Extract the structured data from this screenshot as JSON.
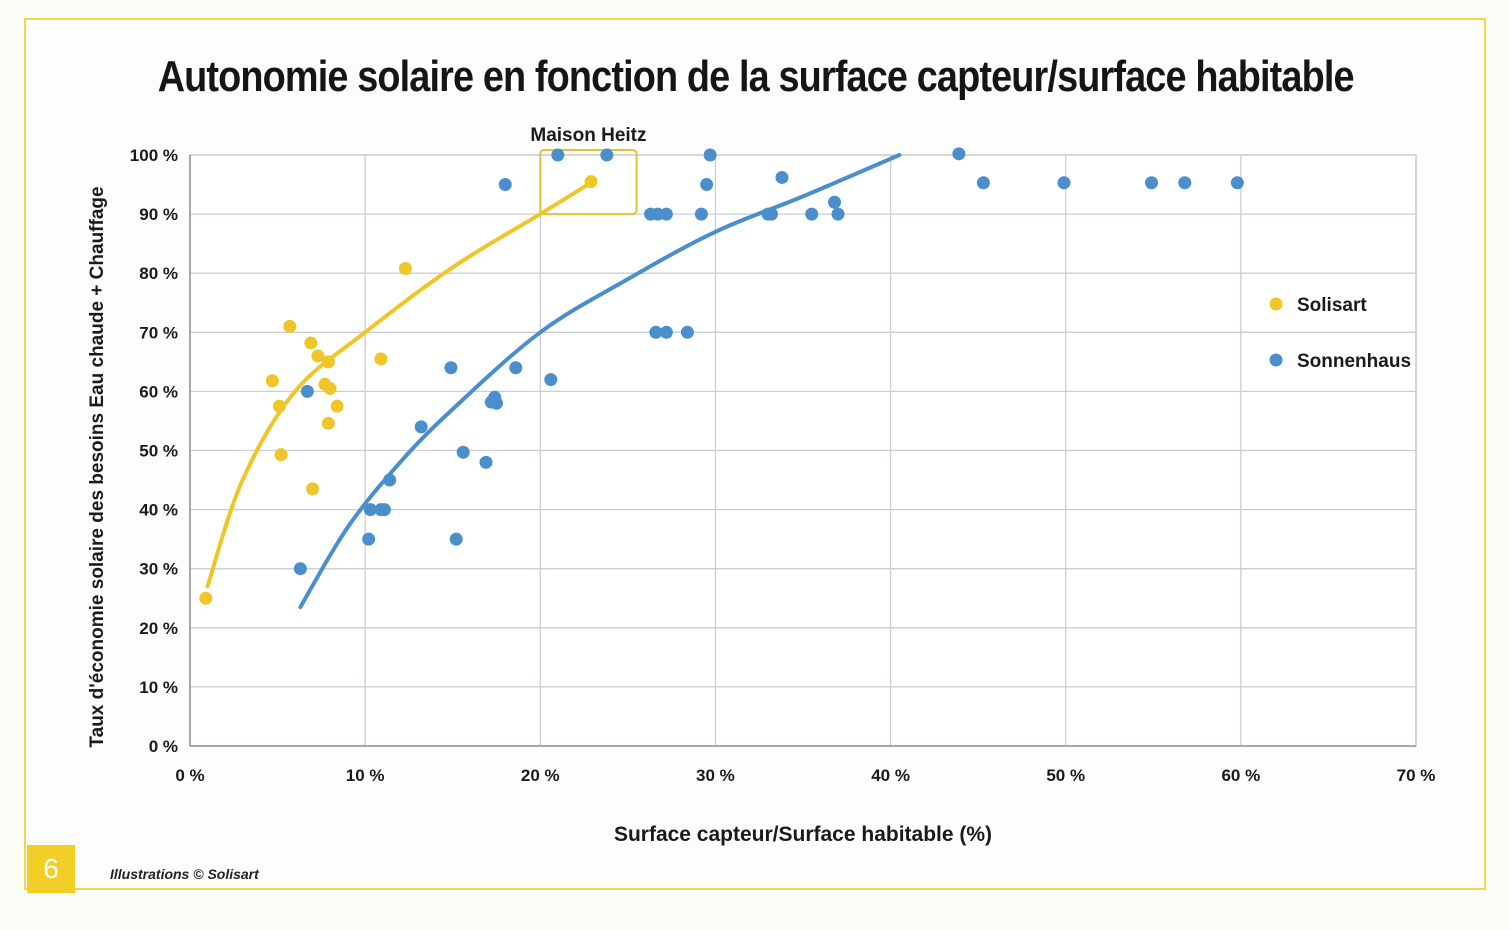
{
  "page": {
    "number": "6",
    "credit": "Illustrations © Solisart"
  },
  "chart_data": {
    "type": "scatter",
    "title": "Autonomie solaire en fonction de la surface capteur/surface habitable",
    "xlabel": "Surface capteur/Surface habitable (%)",
    "ylabel": "Taux d'économie solaire des besoins Eau chaude + Chauffage",
    "xlim": [
      0,
      70
    ],
    "ylim": [
      0,
      100
    ],
    "x_ticks": [
      0,
      10,
      20,
      30,
      40,
      50,
      60,
      70
    ],
    "x_tick_labels": [
      "0 %",
      "10 %",
      "20 %",
      "30 %",
      "40 %",
      "50 %",
      "60 %",
      "70 %"
    ],
    "y_ticks": [
      0,
      10,
      20,
      30,
      40,
      50,
      60,
      70,
      80,
      90,
      100
    ],
    "y_tick_labels": [
      "0 %",
      "10 %",
      "20 %",
      "30 %",
      "40 %",
      "50 %",
      "60 %",
      "70 %",
      "80 %",
      "90 %",
      "100 %"
    ],
    "grid": true,
    "legend_position": "right",
    "annotation": {
      "label": "Maison Heitz",
      "x_range": [
        20,
        25.5
      ],
      "y_range": [
        90,
        100
      ]
    },
    "series": [
      {
        "name": "Solisart",
        "color": "#f0c528",
        "points": [
          [
            0.9,
            25
          ],
          [
            4.7,
            61.8
          ],
          [
            5.1,
            57.5
          ],
          [
            5.2,
            49.3
          ],
          [
            5.7,
            71
          ],
          [
            6.9,
            68.2
          ],
          [
            7.0,
            43.5
          ],
          [
            7.3,
            66
          ],
          [
            7.7,
            61.2
          ],
          [
            7.9,
            65
          ],
          [
            8.0,
            60.5
          ],
          [
            7.9,
            54.6
          ],
          [
            8.4,
            57.5
          ],
          [
            10.9,
            65.5
          ],
          [
            12.3,
            80.8
          ],
          [
            22.9,
            95.5
          ]
        ],
        "trend": [
          [
            1.0,
            27
          ],
          [
            3,
            45
          ],
          [
            6,
            60
          ],
          [
            10,
            70
          ],
          [
            15,
            81
          ],
          [
            20,
            90
          ],
          [
            23,
            95.5
          ]
        ]
      },
      {
        "name": "Sonnenhaus",
        "color": "#4a8fcc",
        "points": [
          [
            6.3,
            30
          ],
          [
            6.7,
            60
          ],
          [
            10.2,
            35
          ],
          [
            10.3,
            40
          ],
          [
            10.9,
            40
          ],
          [
            11.1,
            40
          ],
          [
            11.4,
            45
          ],
          [
            13.2,
            54
          ],
          [
            14.9,
            64
          ],
          [
            15.2,
            35
          ],
          [
            15.6,
            49.7
          ],
          [
            16.9,
            48
          ],
          [
            17.2,
            58.2
          ],
          [
            17.4,
            59
          ],
          [
            17.5,
            58
          ],
          [
            18.0,
            95
          ],
          [
            18.6,
            64
          ],
          [
            20.6,
            62
          ],
          [
            21.0,
            100
          ],
          [
            23.8,
            100
          ],
          [
            26.3,
            90
          ],
          [
            26.7,
            90
          ],
          [
            27.2,
            90
          ],
          [
            26.6,
            70
          ],
          [
            27.2,
            70
          ],
          [
            28.4,
            70
          ],
          [
            29.2,
            90
          ],
          [
            29.5,
            95
          ],
          [
            29.7,
            100
          ],
          [
            33.0,
            90
          ],
          [
            33.2,
            90
          ],
          [
            33.8,
            96.2
          ],
          [
            35.5,
            90
          ],
          [
            36.8,
            92
          ],
          [
            37.0,
            90
          ],
          [
            43.9,
            100.2
          ],
          [
            45.3,
            95.3
          ],
          [
            49.9,
            95.3
          ],
          [
            54.9,
            95.3
          ],
          [
            56.8,
            95.3
          ],
          [
            59.8,
            95.3
          ]
        ],
        "trend": [
          [
            6.3,
            23.5
          ],
          [
            9,
            37
          ],
          [
            12,
            48
          ],
          [
            15,
            57
          ],
          [
            20,
            70
          ],
          [
            25,
            79
          ],
          [
            30,
            87
          ],
          [
            35,
            93
          ],
          [
            40.5,
            100
          ]
        ]
      }
    ]
  }
}
